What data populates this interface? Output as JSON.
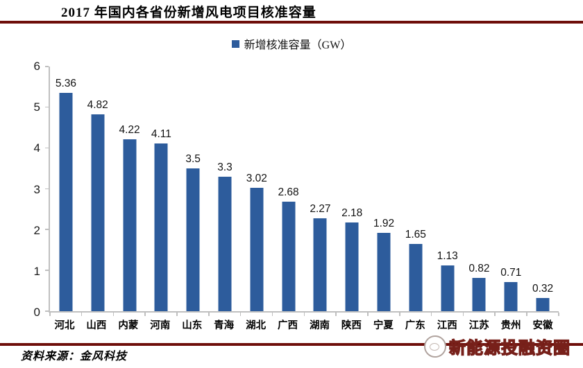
{
  "header": {
    "title": "2017 年国内各省份新增风电项目核准容量"
  },
  "legend": {
    "label": "新增核准容量（GW）",
    "swatch_color": "#2D5C9C",
    "swatch_icon": "legend-square-icon"
  },
  "chart_data": {
    "type": "bar",
    "title": "2017 年国内各省份新增风电项目核准容量",
    "categories": [
      "河北",
      "山西",
      "内蒙",
      "河南",
      "山东",
      "青海",
      "湖北",
      "广西",
      "湖南",
      "陕西",
      "宁夏",
      "广东",
      "江西",
      "江苏",
      "贵州",
      "安徽"
    ],
    "values": [
      5.36,
      4.82,
      4.22,
      4.11,
      3.5,
      3.3,
      3.02,
      2.68,
      2.27,
      2.18,
      1.92,
      1.65,
      1.13,
      0.82,
      0.71,
      0.32
    ],
    "series_name": "新增核准容量（GW）",
    "xlabel": "",
    "ylabel": "",
    "ylim": [
      0,
      6
    ],
    "yticks": [
      0,
      1,
      2,
      3,
      4,
      5,
      6
    ],
    "bar_color": "#2D5C9C",
    "grid": false,
    "legend_position": "top",
    "data_labels": true
  },
  "footer": {
    "source": "资料来源：金风科技",
    "watermark": "新能源投融资圈"
  },
  "colors": {
    "accent_line": "#6E0E0A",
    "bar": "#2D5C9C",
    "axis": "#BFBFBF",
    "watermark_outline": "#77201A",
    "text": "#000000"
  }
}
